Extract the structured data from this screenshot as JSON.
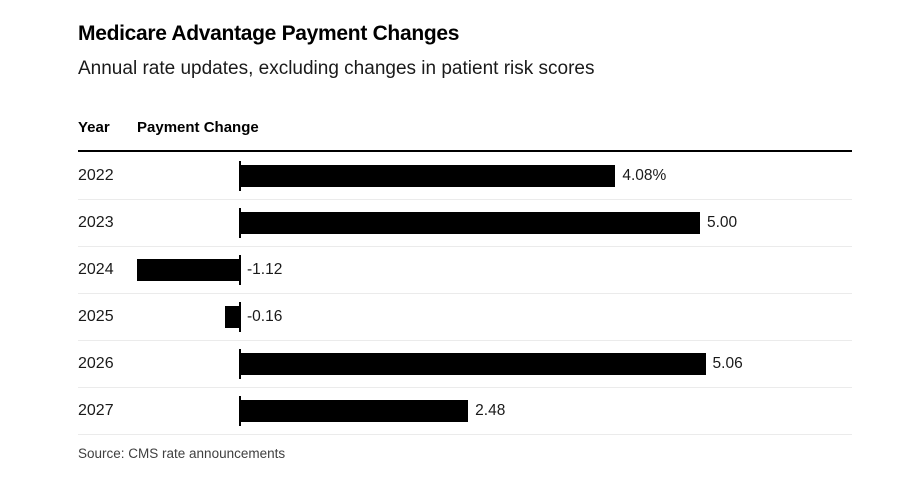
{
  "header": {
    "title": "Medicare Advantage Payment Changes",
    "subtitle": "Annual rate updates, excluding changes in patient risk scores"
  },
  "table": {
    "columns": [
      "Year",
      "Payment Change"
    ]
  },
  "chart_data": {
    "type": "bar",
    "orientation": "horizontal",
    "title": "Medicare Advantage Payment Changes",
    "subtitle": "Annual rate updates, excluding changes in patient risk scores",
    "categories": [
      "2022",
      "2023",
      "2024",
      "2025",
      "2026",
      "2027"
    ],
    "values": [
      4.08,
      5.0,
      -1.12,
      -0.16,
      5.06,
      2.48
    ],
    "value_labels": [
      "4.08%",
      "5.00",
      "-1.12",
      "-0.16",
      "5.06",
      "2.48"
    ],
    "xlabel": "Payment Change",
    "ylabel": "Year",
    "xlim": [
      -1.6,
      6.2
    ],
    "grid": false,
    "legend": false,
    "bar_color": "#000000"
  },
  "footer": {
    "source": "Source: CMS rate announcements"
  },
  "colors": {
    "bar": "#000000",
    "header_rule": "#000000",
    "row_separator": "#ebebeb",
    "text": "#1a1a1a",
    "source_text": "#3f3f3f",
    "background": "#ffffff"
  }
}
